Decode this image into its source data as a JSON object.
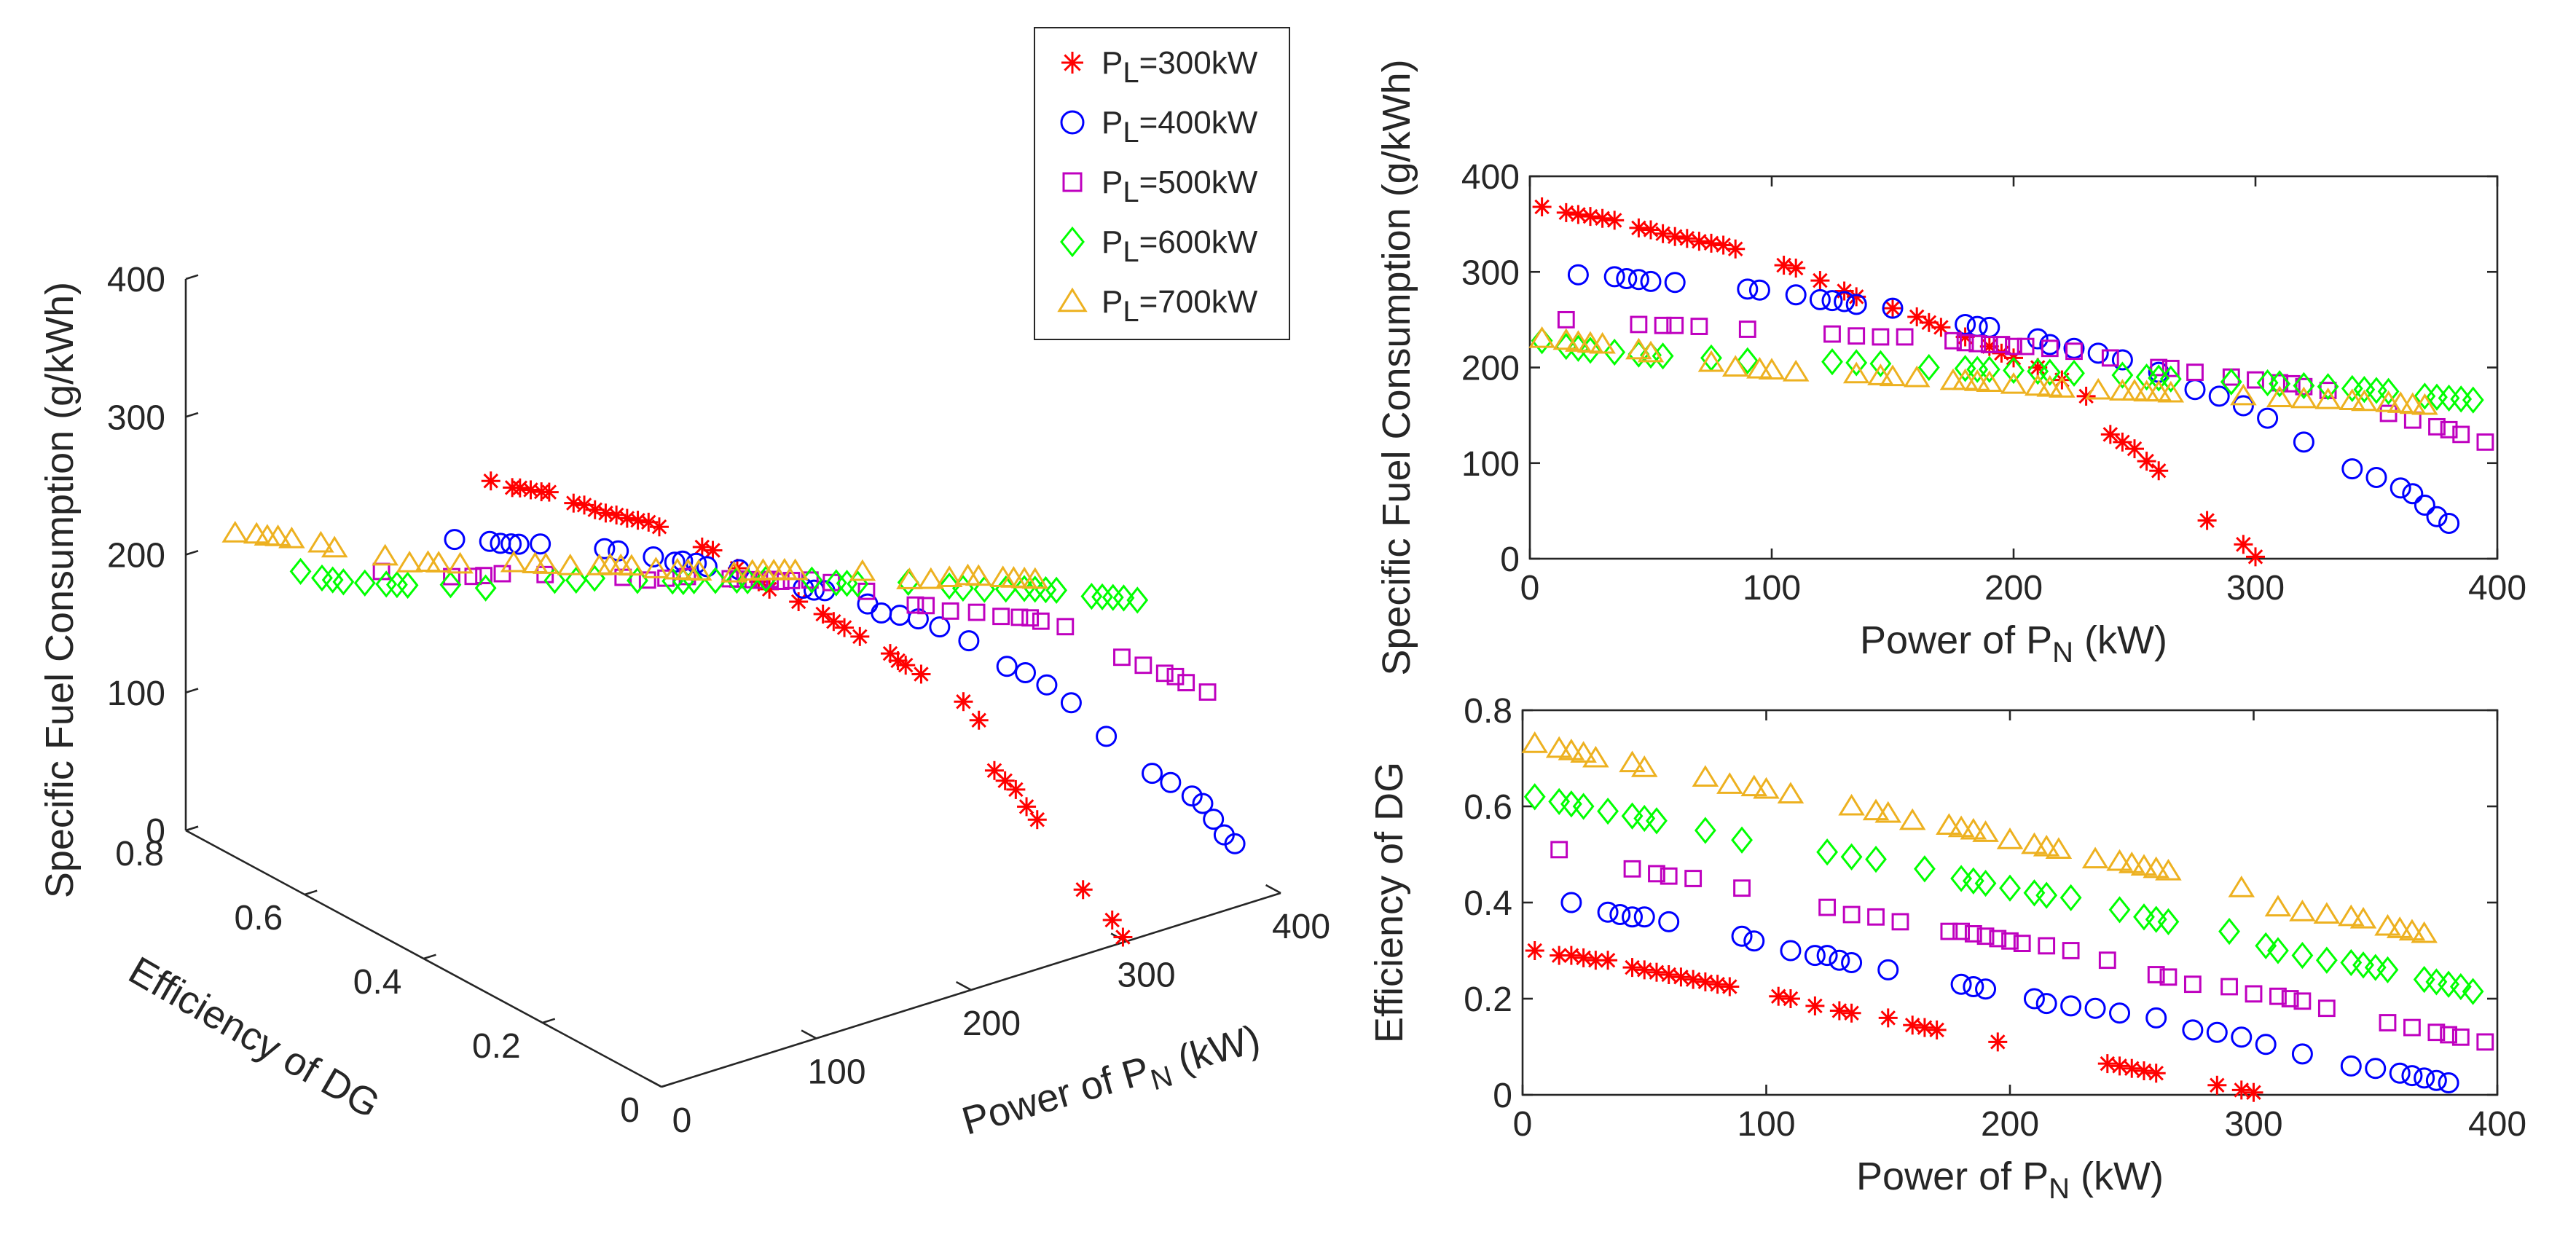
{
  "figure": {
    "description_free": true
  },
  "series_meta": [
    {
      "key": "p300",
      "name": "P_L=300kW",
      "label_main": "P",
      "label_sub": "L",
      "label_rest": "=300kW",
      "marker": "asterisk",
      "color": "#ff0000"
    },
    {
      "key": "p400",
      "name": "P_L=400kW",
      "label_main": "P",
      "label_sub": "L",
      "label_rest": "=400kW",
      "marker": "circle",
      "color": "#0000ff"
    },
    {
      "key": "p500",
      "name": "P_L=500kW",
      "label_main": "P",
      "label_sub": "L",
      "label_rest": "=500kW",
      "marker": "square",
      "color": "#bf00bf"
    },
    {
      "key": "p600",
      "name": "P_L=600kW",
      "label_main": "P",
      "label_sub": "L",
      "label_rest": "=600kW",
      "marker": "diamond",
      "color": "#00ff00"
    },
    {
      "key": "p700",
      "name": "P_L=700kW",
      "label_main": "P",
      "label_sub": "L",
      "label_rest": "=700kW",
      "marker": "triangle",
      "color": "#edb120"
    }
  ],
  "chart_data": [
    {
      "type": "scatter",
      "panel": "3d",
      "title": "",
      "xlabel": "Power of P_N (kW)",
      "ylabel": "Efficiency of DG",
      "zlabel": "Specific Fuel Consumption (g/kWh)",
      "xlabel_main": "Power of P",
      "xlabel_sub": "N",
      "xlabel_rest": " (kW)",
      "ylabel_text": "Efficiency of DG",
      "zlabel_text": "Specific Fuel Consumption (g/kWh)",
      "xlim": [
        0,
        400
      ],
      "ylim": [
        0,
        0.8
      ],
      "zlim": [
        0,
        400
      ],
      "xticks": [
        "0",
        "100",
        "200",
        "300",
        "400"
      ],
      "yticks": [
        "0",
        "0.2",
        "0.4",
        "0.6",
        "0.8"
      ],
      "zticks": [
        "0",
        "100",
        "200",
        "300",
        "400"
      ],
      "legend": "top-right",
      "series": "see series_meta; data shared with 2D panels"
    },
    {
      "type": "scatter",
      "panel": "top-right",
      "title": "",
      "xlabel": "Power of P_N (kW)",
      "ylabel": "Specific Fuel Consumption (g/kWh)",
      "xlabel_main": "Power of P",
      "xlabel_sub": "N",
      "xlabel_rest": " (kW)",
      "ylabel_text": "Specific Fuel Consumption (g/kWh)",
      "xlim": [
        0,
        400
      ],
      "ylim": [
        0,
        400
      ],
      "xticks": [
        "0",
        "100",
        "200",
        "300",
        "400"
      ],
      "yticks": [
        "0",
        "100",
        "200",
        "300",
        "400"
      ],
      "series": [
        {
          "name": "P_L=300kW",
          "x": [
            5,
            15,
            20,
            25,
            30,
            35,
            45,
            50,
            55,
            60,
            65,
            70,
            75,
            80,
            85,
            105,
            110,
            120,
            130,
            135,
            150,
            160,
            165,
            170,
            180,
            190,
            195,
            200,
            210,
            220,
            230,
            240,
            245,
            250,
            255,
            260,
            280,
            295,
            300
          ],
          "y": [
            368,
            362,
            360,
            358,
            356,
            354,
            346,
            344,
            340,
            337,
            335,
            332,
            330,
            328,
            324,
            307,
            304,
            291,
            280,
            274,
            262,
            253,
            247,
            242,
            232,
            222,
            215,
            210,
            200,
            187,
            170,
            130,
            122,
            115,
            102,
            92,
            40,
            15,
            2
          ]
        },
        {
          "name": "P_L=400kW",
          "x": [
            20,
            35,
            40,
            45,
            50,
            60,
            90,
            95,
            110,
            120,
            125,
            130,
            135,
            150,
            180,
            185,
            190,
            210,
            215,
            225,
            235,
            245,
            260,
            275,
            285,
            295,
            305,
            320,
            340,
            350,
            360,
            365,
            370,
            375,
            380
          ],
          "y": [
            297,
            295,
            293,
            292,
            290,
            289,
            282,
            281,
            276,
            271,
            270,
            269,
            266,
            262,
            245,
            243,
            242,
            230,
            224,
            220,
            215,
            208,
            195,
            177,
            170,
            160,
            147,
            122,
            94,
            85,
            74,
            68,
            56,
            44,
            37
          ]
        },
        {
          "name": "P_L=500kW",
          "x": [
            15,
            45,
            55,
            60,
            70,
            90,
            125,
            135,
            145,
            155,
            175,
            180,
            185,
            190,
            195,
            200,
            205,
            215,
            225,
            240,
            260,
            265,
            275,
            290,
            300,
            310,
            315,
            320,
            330,
            355,
            365,
            375,
            380,
            385,
            395
          ],
          "y": [
            250,
            245,
            244,
            244,
            243,
            240,
            235,
            233,
            232,
            232,
            228,
            226,
            225,
            224,
            224,
            222,
            222,
            220,
            217,
            210,
            200,
            199,
            195,
            190,
            187,
            184,
            183,
            180,
            176,
            152,
            145,
            138,
            135,
            130,
            122
          ]
        },
        {
          "name": "P_L=600kW",
          "x": [
            5,
            15,
            20,
            25,
            35,
            45,
            50,
            55,
            75,
            90,
            125,
            135,
            145,
            165,
            180,
            185,
            190,
            200,
            210,
            215,
            225,
            245,
            255,
            260,
            265,
            290,
            305,
            310,
            320,
            330,
            340,
            345,
            350,
            355,
            370,
            375,
            380,
            385,
            390
          ],
          "y": [
            228,
            222,
            220,
            218,
            216,
            214,
            213,
            212,
            210,
            207,
            206,
            205,
            204,
            200,
            199,
            198,
            198,
            197,
            196,
            195,
            194,
            192,
            190,
            189,
            188,
            185,
            184,
            183,
            181,
            180,
            178,
            177,
            176,
            175,
            170,
            169,
            168,
            167,
            166
          ]
        },
        {
          "name": "P_L=700kW",
          "x": [
            5,
            15,
            20,
            25,
            30,
            45,
            50,
            75,
            85,
            95,
            100,
            110,
            135,
            145,
            150,
            160,
            175,
            180,
            185,
            190,
            200,
            210,
            215,
            220,
            235,
            245,
            250,
            255,
            260,
            265,
            295,
            310,
            320,
            330,
            340,
            345,
            355,
            360,
            365,
            370
          ],
          "y": [
            230,
            228,
            226,
            225,
            224,
            218,
            215,
            205,
            200,
            198,
            197,
            195,
            193,
            191,
            190,
            189,
            186,
            186,
            185,
            184,
            182,
            180,
            179,
            178,
            176,
            175,
            175,
            174,
            174,
            173,
            170,
            168,
            167,
            166,
            165,
            164,
            163,
            162,
            161,
            160
          ]
        }
      ]
    },
    {
      "type": "scatter",
      "panel": "bottom-right",
      "title": "",
      "xlabel": "Power of P_N (kW)",
      "ylabel": "Efficiency of DG",
      "xlabel_main": "Power of P",
      "xlabel_sub": "N",
      "xlabel_rest": " (kW)",
      "ylabel_text": "Efficiency of DG",
      "xlim": [
        0,
        400
      ],
      "ylim": [
        0,
        0.8
      ],
      "xticks": [
        "0",
        "100",
        "200",
        "300",
        "400"
      ],
      "yticks": [
        "0",
        "0.2",
        "0.4",
        "0.6",
        "0.8"
      ],
      "series": [
        {
          "name": "P_L=300kW",
          "x": [
            5,
            15,
            20,
            25,
            30,
            35,
            45,
            50,
            55,
            60,
            65,
            70,
            75,
            80,
            85,
            105,
            110,
            120,
            130,
            135,
            150,
            160,
            165,
            170,
            195,
            240,
            245,
            250,
            255,
            260,
            285,
            295,
            300
          ],
          "y": [
            0.3,
            0.29,
            0.29,
            0.285,
            0.28,
            0.28,
            0.265,
            0.26,
            0.255,
            0.25,
            0.245,
            0.24,
            0.235,
            0.23,
            0.225,
            0.205,
            0.2,
            0.185,
            0.175,
            0.17,
            0.16,
            0.145,
            0.14,
            0.135,
            0.11,
            0.065,
            0.06,
            0.055,
            0.05,
            0.045,
            0.02,
            0.01,
            0.005
          ]
        },
        {
          "name": "P_L=400kW",
          "x": [
            20,
            35,
            40,
            45,
            50,
            60,
            90,
            95,
            110,
            120,
            125,
            130,
            135,
            150,
            180,
            185,
            190,
            210,
            215,
            225,
            235,
            245,
            260,
            275,
            285,
            295,
            305,
            320,
            340,
            350,
            360,
            365,
            370,
            375,
            380
          ],
          "y": [
            0.4,
            0.38,
            0.375,
            0.37,
            0.37,
            0.36,
            0.33,
            0.32,
            0.3,
            0.29,
            0.29,
            0.28,
            0.275,
            0.26,
            0.23,
            0.225,
            0.22,
            0.2,
            0.19,
            0.185,
            0.18,
            0.17,
            0.16,
            0.135,
            0.13,
            0.12,
            0.105,
            0.085,
            0.06,
            0.055,
            0.045,
            0.04,
            0.035,
            0.03,
            0.025
          ]
        },
        {
          "name": "P_L=500kW",
          "x": [
            15,
            45,
            55,
            60,
            70,
            90,
            125,
            135,
            145,
            155,
            175,
            180,
            185,
            190,
            195,
            200,
            205,
            215,
            225,
            240,
            260,
            265,
            275,
            290,
            300,
            310,
            315,
            320,
            330,
            355,
            365,
            375,
            380,
            385,
            395
          ],
          "y": [
            0.51,
            0.47,
            0.46,
            0.455,
            0.45,
            0.43,
            0.39,
            0.375,
            0.37,
            0.36,
            0.34,
            0.34,
            0.335,
            0.33,
            0.325,
            0.32,
            0.315,
            0.31,
            0.3,
            0.28,
            0.25,
            0.245,
            0.23,
            0.225,
            0.21,
            0.205,
            0.2,
            0.195,
            0.18,
            0.15,
            0.14,
            0.13,
            0.125,
            0.12,
            0.11
          ]
        },
        {
          "name": "P_L=600kW",
          "x": [
            5,
            15,
            20,
            25,
            35,
            45,
            50,
            55,
            75,
            90,
            125,
            135,
            145,
            165,
            180,
            185,
            190,
            200,
            210,
            215,
            225,
            245,
            255,
            260,
            265,
            290,
            305,
            310,
            320,
            330,
            340,
            345,
            350,
            355,
            370,
            375,
            380,
            385,
            390
          ],
          "y": [
            0.62,
            0.61,
            0.605,
            0.6,
            0.59,
            0.58,
            0.575,
            0.57,
            0.55,
            0.53,
            0.505,
            0.495,
            0.49,
            0.47,
            0.45,
            0.445,
            0.44,
            0.43,
            0.42,
            0.415,
            0.41,
            0.385,
            0.37,
            0.365,
            0.36,
            0.34,
            0.31,
            0.3,
            0.29,
            0.28,
            0.275,
            0.27,
            0.265,
            0.26,
            0.24,
            0.235,
            0.23,
            0.225,
            0.215
          ]
        },
        {
          "name": "P_L=700kW",
          "x": [
            5,
            15,
            20,
            25,
            30,
            45,
            50,
            75,
            85,
            95,
            100,
            110,
            135,
            145,
            150,
            160,
            175,
            180,
            185,
            190,
            200,
            210,
            215,
            220,
            235,
            245,
            250,
            255,
            260,
            265,
            295,
            310,
            320,
            330,
            340,
            345,
            355,
            360,
            365,
            370
          ],
          "y": [
            0.73,
            0.72,
            0.715,
            0.71,
            0.7,
            0.69,
            0.68,
            0.66,
            0.645,
            0.64,
            0.635,
            0.625,
            0.6,
            0.59,
            0.585,
            0.57,
            0.56,
            0.555,
            0.55,
            0.545,
            0.53,
            0.52,
            0.515,
            0.51,
            0.49,
            0.485,
            0.48,
            0.475,
            0.47,
            0.465,
            0.43,
            0.39,
            0.38,
            0.375,
            0.37,
            0.365,
            0.35,
            0.345,
            0.34,
            0.335
          ]
        }
      ]
    }
  ]
}
